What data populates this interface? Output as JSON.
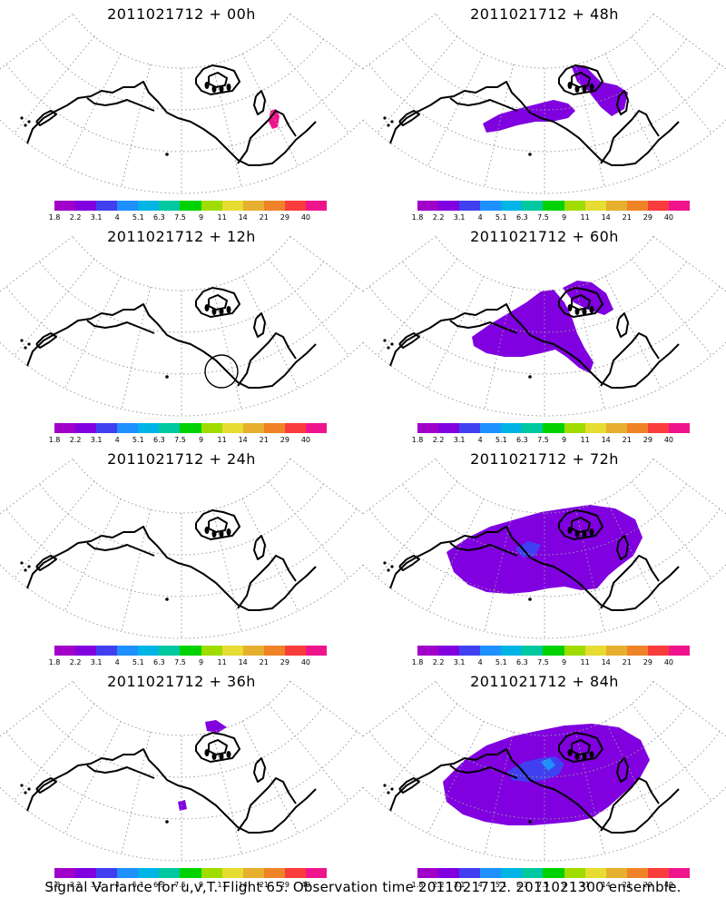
{
  "panels": [
    {
      "title": "2011021712 + 00h",
      "signal": "small_spot"
    },
    {
      "title": "2011021712 + 12h",
      "signal": "circle"
    },
    {
      "title": "2011021712 + 24h",
      "signal": "none"
    },
    {
      "title": "2011021712 + 36h",
      "signal": "small"
    },
    {
      "title": "2011021712 + 48h",
      "signal": "band"
    },
    {
      "title": "2011021712 + 60h",
      "signal": "spread"
    },
    {
      "title": "2011021712 + 72h",
      "signal": "wide"
    },
    {
      "title": "2011021712 + 84h",
      "signal": "wider"
    }
  ],
  "colorbar": {
    "colors": [
      "#a000c8",
      "#8000e0",
      "#4040f0",
      "#1e90ff",
      "#00b4e6",
      "#00c8a0",
      "#00d200",
      "#a0dc00",
      "#e6dc32",
      "#e6af2d",
      "#f08228",
      "#fa3c3c",
      "#f0148c"
    ],
    "labels": [
      "1.8",
      "2.2",
      "3.1",
      "4",
      "5.1",
      "6.3",
      "7.5",
      "9",
      "11",
      "14",
      "21",
      "29",
      "40"
    ]
  },
  "footer": "Signal Variance for u,v,T. Flight 65. Observation time 2011021712. 2011021300 ensemble.",
  "chart_data": {
    "type": "heatmap",
    "title": "Signal Variance for u,v,T. Flight 65. Observation time 2011021712. 2011021300 ensemble.",
    "lead_times_hours": [
      0,
      12,
      24,
      36,
      48,
      60,
      72,
      84
    ],
    "levels": [
      1.8,
      2.2,
      3.1,
      4,
      5.1,
      6.3,
      7.5,
      9,
      11,
      14,
      21,
      29,
      40
    ]
  }
}
